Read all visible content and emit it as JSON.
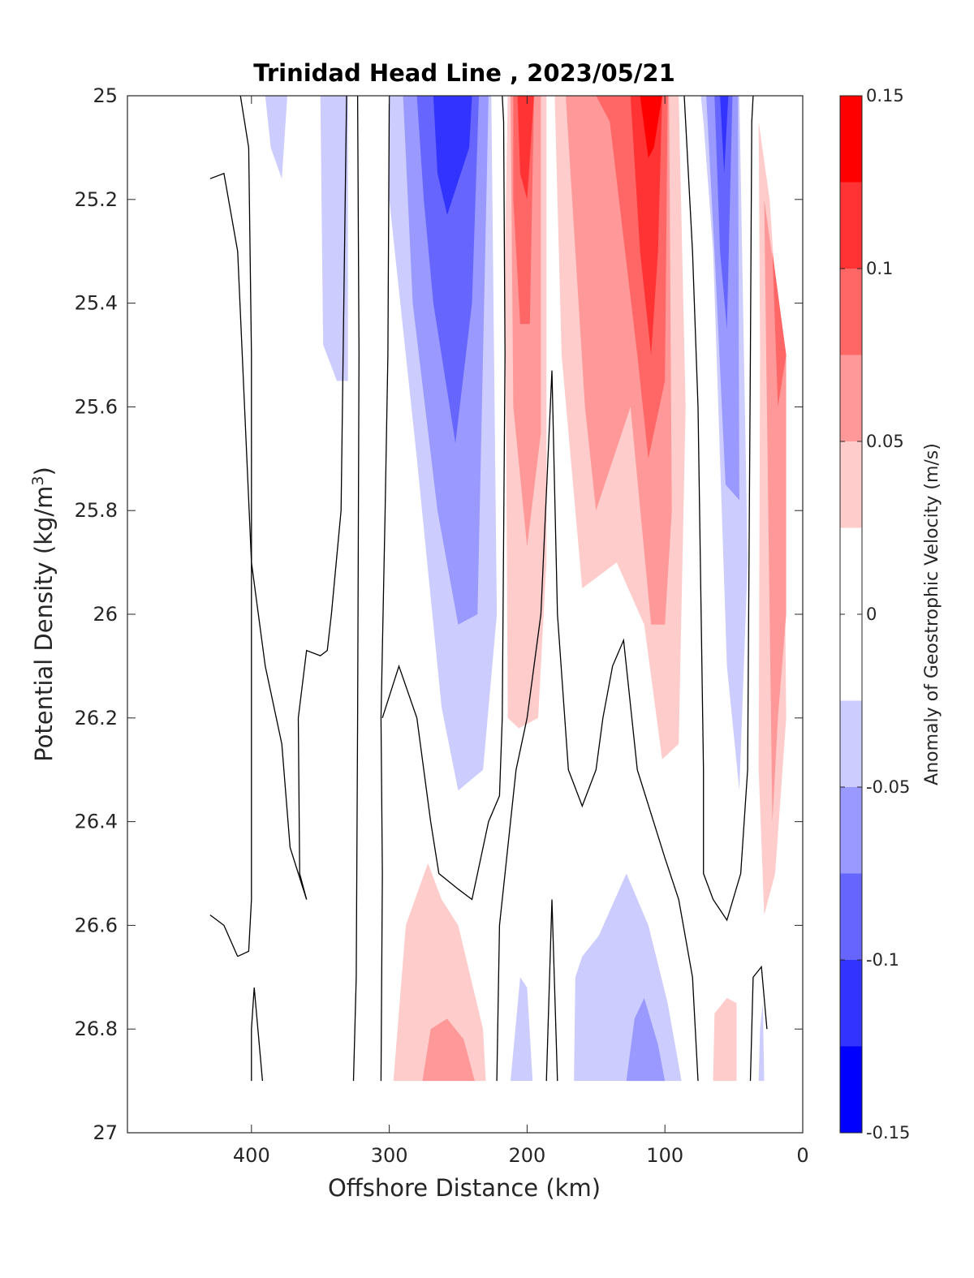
{
  "chart_data": {
    "type": "heatmap",
    "title": "Trinidad Head Line , 2023/05/21",
    "xlabel": "Offshore Distance (km)",
    "ylabel_main": "Potential Density (kg/m",
    "ylabel_sup": "3",
    "ylabel_close": ")",
    "colorbar_label": "Anomaly of Geostrophic Velocity (m/s)",
    "xlim": [
      490,
      0
    ],
    "x_reversed": true,
    "ylim": [
      25,
      27
    ],
    "y_reversed": true,
    "xticks": [
      400,
      300,
      200,
      100,
      0
    ],
    "xtick_labels": [
      "400",
      "300",
      "200",
      "100",
      "0"
    ],
    "yticks": [
      25,
      25.2,
      25.4,
      25.6,
      25.8,
      26,
      26.2,
      26.4,
      26.6,
      26.8,
      27
    ],
    "ytick_labels": [
      "25",
      "25.2",
      "25.4",
      "25.6",
      "25.8",
      "26",
      "26.2",
      "26.4",
      "26.6",
      "26.8",
      "27"
    ],
    "colorbar": {
      "range": [
        -0.15,
        0.15
      ],
      "ticks": [
        0.15,
        0.1,
        0.05,
        0,
        -0.05,
        -0.1,
        -0.15
      ],
      "tick_labels": [
        "0.15",
        "0.1",
        "0.05",
        "0",
        "-0.05",
        "-0.1",
        "-0.15"
      ],
      "levels": [
        {
          "from": 0.125,
          "to": 0.15,
          "color": "#ff0000"
        },
        {
          "from": 0.1,
          "to": 0.125,
          "color": "#ff3333"
        },
        {
          "from": 0.075,
          "to": 0.1,
          "color": "#ff6666"
        },
        {
          "from": 0.05,
          "to": 0.075,
          "color": "#ff9999"
        },
        {
          "from": 0.025,
          "to": 0.05,
          "color": "#ffcccc"
        },
        {
          "from": -0.025,
          "to": 0.025,
          "color": "#ffffff"
        },
        {
          "from": -0.05,
          "to": -0.025,
          "color": "#ccccff"
        },
        {
          "from": -0.075,
          "to": -0.05,
          "color": "#9999ff"
        },
        {
          "from": -0.1,
          "to": -0.075,
          "color": "#6666ff"
        },
        {
          "from": -0.125,
          "to": -0.1,
          "color": "#3333ff"
        },
        {
          "from": -0.15,
          "to": -0.125,
          "color": "#0000ff"
        }
      ]
    },
    "regions": [
      {
        "level": -0.0375,
        "points": [
          [
            390,
            25
          ],
          [
            374,
            25
          ],
          [
            378,
            25.16
          ],
          [
            386,
            25.1
          ]
        ]
      },
      {
        "level": -0.0375,
        "points": [
          [
            350,
            25
          ],
          [
            330,
            25
          ],
          [
            330,
            25.55
          ],
          [
            338,
            25.55
          ],
          [
            348,
            25.48
          ]
        ]
      },
      {
        "level": -0.0375,
        "points": [
          [
            300,
            25
          ],
          [
            226,
            25
          ],
          [
            222,
            26
          ],
          [
            232,
            26.3
          ],
          [
            250,
            26.34
          ],
          [
            262,
            26.18
          ],
          [
            280,
            25.7
          ],
          [
            300,
            25.2
          ]
        ]
      },
      {
        "level": -0.0625,
        "points": [
          [
            290,
            25
          ],
          [
            228,
            25
          ],
          [
            236,
            26
          ],
          [
            250,
            26.02
          ],
          [
            265,
            25.8
          ],
          [
            283,
            25.4
          ]
        ]
      },
      {
        "level": -0.0875,
        "points": [
          [
            280,
            25
          ],
          [
            235,
            25
          ],
          [
            240,
            25.4
          ],
          [
            252,
            25.67
          ],
          [
            268,
            25.4
          ],
          [
            275,
            25.2
          ]
        ]
      },
      {
        "level": -0.1125,
        "points": [
          [
            268,
            25
          ],
          [
            240,
            25
          ],
          [
            242,
            25.1
          ],
          [
            258,
            25.23
          ],
          [
            265,
            25.15
          ]
        ]
      },
      {
        "level": 0.0375,
        "points": [
          [
            214,
            25
          ],
          [
            186,
            25
          ],
          [
            186,
            25.9
          ],
          [
            192,
            26.2
          ],
          [
            206,
            26.22
          ],
          [
            214,
            26.2
          ],
          [
            216,
            25.3
          ]
        ]
      },
      {
        "level": 0.0625,
        "points": [
          [
            212,
            25
          ],
          [
            190,
            25
          ],
          [
            190,
            25.65
          ],
          [
            200,
            25.87
          ],
          [
            210,
            25.6
          ]
        ]
      },
      {
        "level": 0.0875,
        "points": [
          [
            210,
            25
          ],
          [
            195,
            25
          ],
          [
            198,
            25.44
          ],
          [
            205,
            25.44
          ],
          [
            210,
            25.2
          ]
        ]
      },
      {
        "level": 0.1125,
        "points": [
          [
            207,
            25
          ],
          [
            195,
            25
          ],
          [
            200,
            25.2
          ],
          [
            205,
            25.15
          ]
        ]
      },
      {
        "level": 0.0375,
        "points": [
          [
            180,
            25
          ],
          [
            90,
            25
          ],
          [
            85,
            25.6
          ],
          [
            90,
            26.25
          ],
          [
            102,
            26.28
          ],
          [
            115,
            26.02
          ],
          [
            135,
            25.9
          ],
          [
            160,
            25.95
          ],
          [
            175,
            25.5
          ]
        ]
      },
      {
        "level": 0.0625,
        "points": [
          [
            172,
            25
          ],
          [
            97,
            25
          ],
          [
            95,
            25.8
          ],
          [
            100,
            26.02
          ],
          [
            110,
            26.02
          ],
          [
            125,
            25.6
          ],
          [
            150,
            25.8
          ],
          [
            158,
            25.6
          ]
        ]
      },
      {
        "level": 0.0875,
        "points": [
          [
            150,
            25
          ],
          [
            98,
            25
          ],
          [
            100,
            25.55
          ],
          [
            112,
            25.7
          ],
          [
            120,
            25.5
          ],
          [
            140,
            25.05
          ]
        ]
      },
      {
        "level": 0.1125,
        "points": [
          [
            125,
            25
          ],
          [
            102,
            25
          ],
          [
            105,
            25.3
          ],
          [
            110,
            25.5
          ],
          [
            118,
            25.3
          ]
        ]
      },
      {
        "level": 0.1375,
        "points": [
          [
            118,
            25
          ],
          [
            102,
            25
          ],
          [
            108,
            25.1
          ],
          [
            112,
            25.12
          ]
        ]
      },
      {
        "level": -0.0375,
        "points": [
          [
            74,
            25
          ],
          [
            46,
            25
          ],
          [
            40,
            25.9
          ],
          [
            46,
            26.34
          ],
          [
            55,
            26.1
          ],
          [
            65,
            25.3
          ],
          [
            72,
            25.05
          ]
        ]
      },
      {
        "level": -0.0625,
        "points": [
          [
            70,
            25
          ],
          [
            47,
            25
          ],
          [
            46,
            25.78
          ],
          [
            56,
            25.75
          ],
          [
            64,
            25.3
          ]
        ]
      },
      {
        "level": -0.0875,
        "points": [
          [
            64,
            25
          ],
          [
            51,
            25
          ],
          [
            55,
            25.45
          ],
          [
            60,
            25.3
          ]
        ]
      },
      {
        "level": -0.1125,
        "points": [
          [
            60,
            25
          ],
          [
            54,
            25
          ],
          [
            57,
            25.15
          ]
        ]
      },
      {
        "level": 0.0375,
        "points": [
          [
            32,
            25.05
          ],
          [
            24,
            25.2
          ],
          [
            14,
            25.6
          ],
          [
            12,
            26.2
          ],
          [
            20,
            26.5
          ],
          [
            28,
            26.58
          ],
          [
            32,
            26.3
          ],
          [
            31,
            25.5
          ]
        ]
      },
      {
        "level": 0.0625,
        "points": [
          [
            28,
            25.2
          ],
          [
            12,
            25.5
          ],
          [
            12,
            26.0
          ],
          [
            18,
            26.2
          ],
          [
            22,
            26.4
          ],
          [
            24,
            26.0
          ],
          [
            27,
            25.4
          ]
        ]
      },
      {
        "level": 0.0875,
        "points": [
          [
            22,
            25.3
          ],
          [
            12,
            25.5
          ],
          [
            18,
            25.6
          ]
        ]
      },
      {
        "level": 0.0375,
        "points": [
          [
            297,
            26.9
          ],
          [
            230,
            26.9
          ],
          [
            232,
            26.8
          ],
          [
            250,
            26.6
          ],
          [
            262,
            26.55
          ],
          [
            272,
            26.48
          ],
          [
            288,
            26.6
          ]
        ]
      },
      {
        "level": 0.0625,
        "points": [
          [
            276,
            26.9
          ],
          [
            238,
            26.9
          ],
          [
            246,
            26.82
          ],
          [
            258,
            26.78
          ],
          [
            270,
            26.8
          ]
        ]
      },
      {
        "level": -0.0375,
        "points": [
          [
            212,
            26.9
          ],
          [
            196,
            26.9
          ],
          [
            200,
            26.72
          ],
          [
            205,
            26.7
          ]
        ]
      },
      {
        "level": -0.0375,
        "points": [
          [
            166,
            26.9
          ],
          [
            88,
            26.9
          ],
          [
            98,
            26.75
          ],
          [
            112,
            26.6
          ],
          [
            128,
            26.5
          ],
          [
            148,
            26.62
          ],
          [
            160,
            26.66
          ],
          [
            165,
            26.7
          ]
        ]
      },
      {
        "level": -0.0625,
        "points": [
          [
            128,
            26.9
          ],
          [
            100,
            26.9
          ],
          [
            105,
            26.83
          ],
          [
            115,
            26.74
          ],
          [
            122,
            26.78
          ]
        ]
      },
      {
        "level": 0.0375,
        "points": [
          [
            65,
            26.9
          ],
          [
            48,
            26.9
          ],
          [
            48,
            26.75
          ],
          [
            55,
            26.74
          ],
          [
            64,
            26.77
          ]
        ]
      },
      {
        "level": -0.0375,
        "points": [
          [
            32,
            26.9
          ],
          [
            28,
            26.9
          ],
          [
            29,
            26.75
          ],
          [
            31,
            26.8
          ]
        ]
      }
    ],
    "zero_contours": [
      [
        [
          430,
          25.16
        ],
        [
          420,
          25.15
        ],
        [
          410,
          25.3
        ],
        [
          405,
          25.6
        ],
        [
          400,
          25.9
        ],
        [
          390,
          26.1
        ],
        [
          378,
          26.25
        ],
        [
          372,
          26.45
        ],
        [
          360,
          26.55
        ]
      ],
      [
        [
          430,
          26.58
        ],
        [
          420,
          26.6
        ],
        [
          410,
          26.66
        ]
      ],
      [
        [
          408,
          25
        ],
        [
          402,
          25.1
        ],
        [
          400,
          25.5
        ],
        [
          400,
          26.2
        ],
        [
          400,
          26.55
        ],
        [
          402,
          26.65
        ],
        [
          410,
          26.66
        ]
      ],
      [
        [
          400,
          26.9
        ],
        [
          400,
          26.8
        ],
        [
          398,
          26.72
        ],
        [
          392,
          26.9
        ]
      ],
      [
        [
          360,
          26.55
        ],
        [
          365,
          26.5
        ],
        [
          366,
          26.2
        ],
        [
          360,
          26.07
        ],
        [
          350,
          26.08
        ],
        [
          345,
          26.07
        ],
        [
          342,
          26.0
        ],
        [
          335,
          25.8
        ],
        [
          332,
          25.2
        ],
        [
          331,
          25
        ]
      ],
      [
        [
          326,
          26.9
        ],
        [
          324,
          26.7
        ],
        [
          323,
          26.2
        ],
        [
          322,
          25.5
        ],
        [
          323,
          25
        ]
      ],
      [
        [
          306,
          26.9
        ],
        [
          305,
          26.5
        ],
        [
          306,
          26.2
        ],
        [
          303,
          25.8
        ],
        [
          301,
          25.5
        ],
        [
          300,
          25
        ]
      ],
      [
        [
          305,
          26.2
        ],
        [
          293,
          26.1
        ],
        [
          280,
          26.2
        ],
        [
          270,
          26.4
        ],
        [
          264,
          26.5
        ],
        [
          250,
          26.53
        ],
        [
          240,
          26.55
        ],
        [
          228,
          26.4
        ],
        [
          220,
          26.35
        ],
        [
          218,
          26.2
        ],
        [
          216,
          25.5
        ],
        [
          217,
          25.05
        ],
        [
          218,
          25
        ]
      ],
      [
        [
          222,
          26.9
        ],
        [
          220,
          26.6
        ],
        [
          212,
          26.4
        ],
        [
          208,
          26.3
        ],
        [
          200,
          26.2
        ],
        [
          190,
          26.0
        ],
        [
          182,
          25.53
        ],
        [
          178,
          26.0
        ],
        [
          170,
          26.3
        ],
        [
          160,
          26.37
        ],
        [
          150,
          26.3
        ],
        [
          145,
          26.2
        ],
        [
          138,
          26.1
        ],
        [
          130,
          26.05
        ],
        [
          120,
          26.3
        ],
        [
          100,
          26.47
        ],
        [
          90,
          26.55
        ],
        [
          80,
          26.7
        ],
        [
          76,
          26.9
        ]
      ],
      [
        [
          186,
          26.9
        ],
        [
          182,
          26.55
        ],
        [
          178,
          26.9
        ]
      ],
      [
        [
          86,
          25
        ],
        [
          80,
          25.3
        ],
        [
          76,
          25.6
        ],
        [
          72,
          26.3
        ],
        [
          72,
          26.5
        ],
        [
          65,
          26.55
        ],
        [
          55,
          26.59
        ],
        [
          45,
          26.5
        ],
        [
          40,
          26.3
        ],
        [
          38,
          25.5
        ],
        [
          37,
          25.05
        ],
        [
          36,
          25
        ]
      ],
      [
        [
          38,
          26.9
        ],
        [
          36,
          26.7
        ],
        [
          30,
          26.68
        ],
        [
          26,
          26.8
        ]
      ]
    ]
  }
}
